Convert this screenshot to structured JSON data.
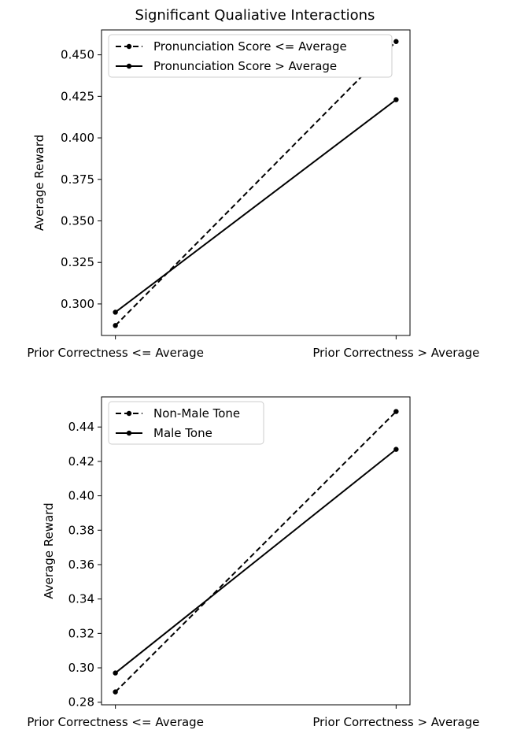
{
  "figure": {
    "title": "Significant Qualiative Interactions"
  },
  "chart_data": [
    {
      "type": "line",
      "title": "Significant Qualiative Interactions",
      "xlabel": "",
      "ylabel": "Average Reward",
      "categories": [
        "Prior Correctness <= Average",
        "Prior Correctness > Average"
      ],
      "ylim": [
        0.281,
        0.465
      ],
      "yticks": [
        0.3,
        0.325,
        0.35,
        0.375,
        0.4,
        0.425,
        0.45
      ],
      "ytick_labels": [
        "0.300",
        "0.325",
        "0.350",
        "0.375",
        "0.400",
        "0.425",
        "0.450"
      ],
      "legend_position": "upper left",
      "grid": false,
      "series": [
        {
          "name": "Pronunciation Score <= Average",
          "linestyle": "dashed",
          "marker": "point",
          "color": "#000000",
          "values": [
            0.287,
            0.458
          ]
        },
        {
          "name": "Pronunciation Score > Average",
          "linestyle": "solid",
          "marker": "point",
          "color": "#000000",
          "values": [
            0.295,
            0.423
          ]
        }
      ]
    },
    {
      "type": "line",
      "title": "",
      "xlabel": "",
      "ylabel": "Average Reward",
      "categories": [
        "Prior Correctness <= Average",
        "Prior Correctness > Average"
      ],
      "ylim": [
        0.2785,
        0.4575
      ],
      "yticks": [
        0.28,
        0.3,
        0.32,
        0.34,
        0.36,
        0.38,
        0.4,
        0.42,
        0.44
      ],
      "ytick_labels": [
        "0.28",
        "0.30",
        "0.32",
        "0.34",
        "0.36",
        "0.38",
        "0.40",
        "0.42",
        "0.44"
      ],
      "legend_position": "upper left",
      "grid": false,
      "series": [
        {
          "name": "Non-Male Tone",
          "linestyle": "dashed",
          "marker": "point",
          "color": "#000000",
          "values": [
            0.286,
            0.449
          ]
        },
        {
          "name": "Male Tone",
          "linestyle": "solid",
          "marker": "point",
          "color": "#000000",
          "values": [
            0.297,
            0.427
          ]
        }
      ]
    }
  ]
}
